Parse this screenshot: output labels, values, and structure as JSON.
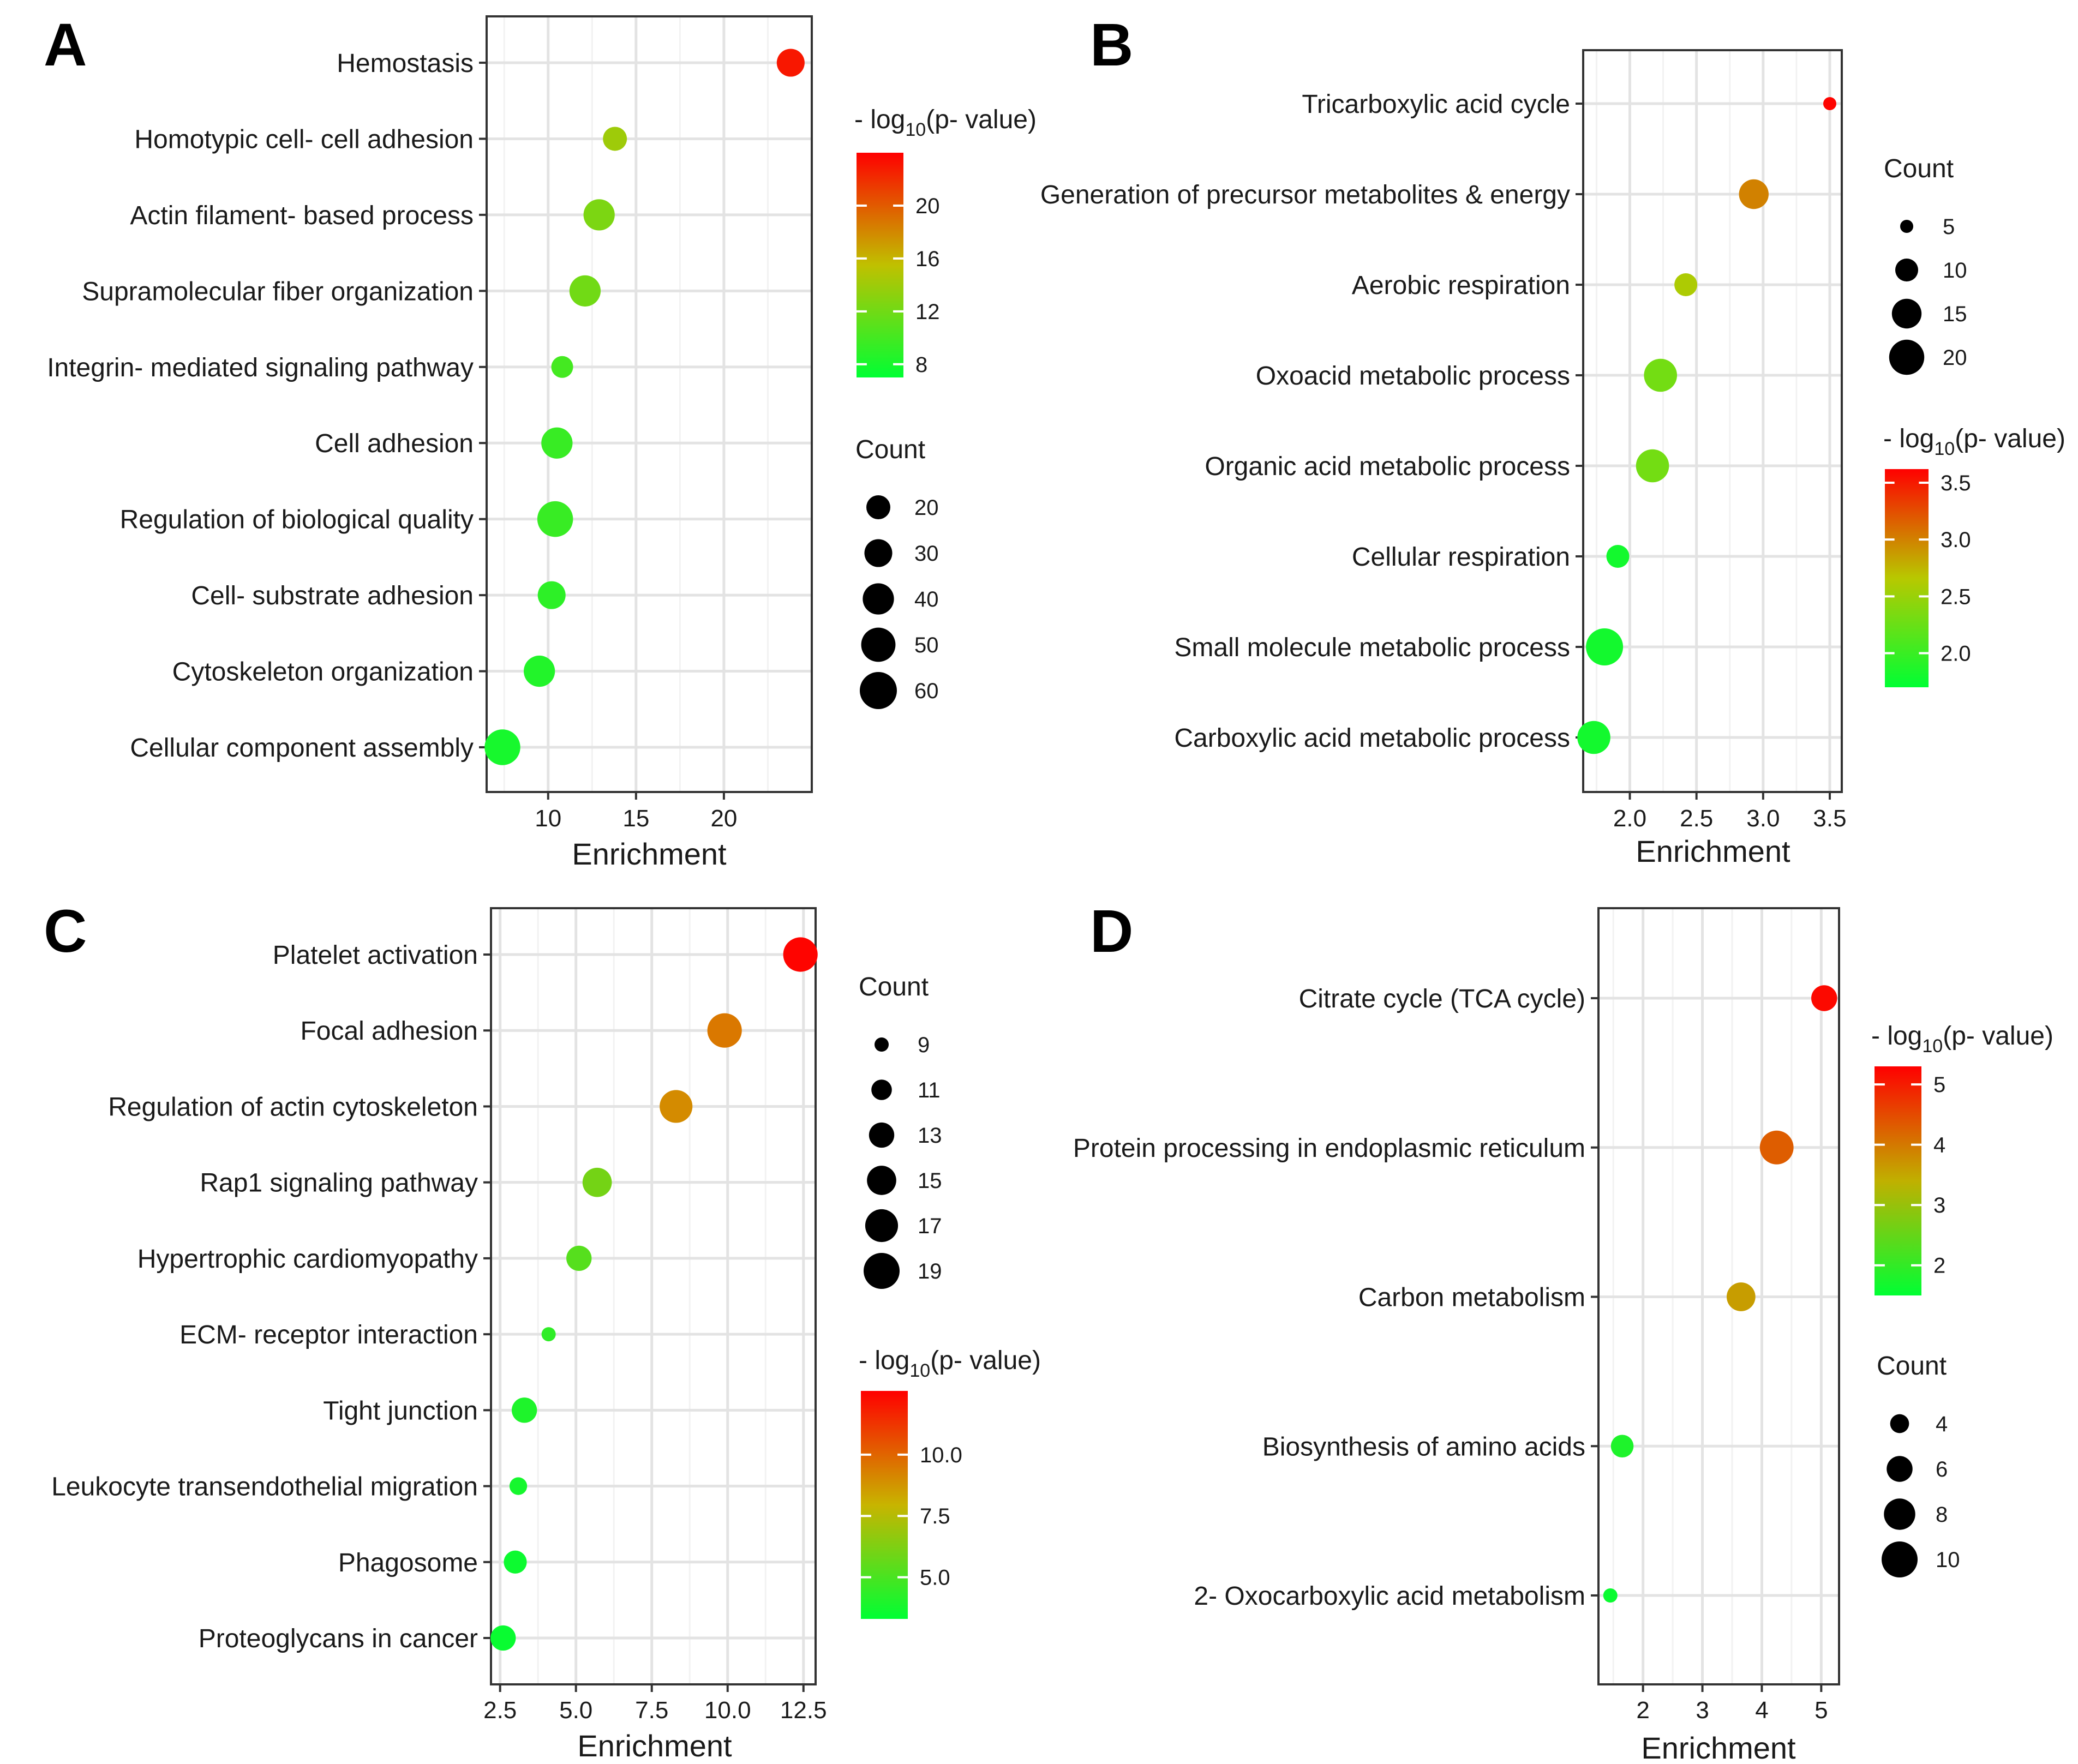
{
  "figure": {
    "panels": [
      {
        "letter": "A",
        "chart_data": {
          "type": "scatter",
          "categories": [
            "Hemostasis",
            "Homotypic cell- cell adhesion",
            "Actin filament- based process",
            "Supramolecular fiber organization",
            "Integrin- mediated signaling pathway",
            "Cell adhesion",
            "Regulation of biological quality",
            "Cell- substrate adhesion",
            "Cytoskeleton organization",
            "Cellular component assembly"
          ],
          "x": [
            23.8,
            13.8,
            12.9,
            12.1,
            10.8,
            10.5,
            10.4,
            10.2,
            9.5,
            7.4
          ],
          "count": [
            30,
            20,
            40,
            40,
            15,
            40,
            55,
            30,
            40,
            55
          ],
          "neglog10p": [
            23,
            14,
            12.5,
            12,
            10,
            9.5,
            9.5,
            9,
            8.5,
            8
          ],
          "xlabel": "Enrichment",
          "xlim": [
            6.5,
            25
          ],
          "xticks": [
            10,
            15,
            20
          ],
          "grid": true,
          "color_legend": {
            "title_prefix": "- log",
            "title_sub": "10",
            "title_suffix": "(p- value)",
            "range": [
              7,
              24
            ],
            "ticks": [
              20,
              16,
              12,
              8
            ],
            "low_color": "#00ff33",
            "mid_color": "#c0c000",
            "high_color": "#ff0000"
          },
          "size_legend": {
            "title": "Count",
            "values": [
              20,
              30,
              40,
              50,
              60
            ],
            "range": [
              15,
              60
            ]
          }
        }
      },
      {
        "letter": "B",
        "chart_data": {
          "type": "scatter",
          "categories": [
            "Tricarboxylic acid cycle",
            "Generation of precursor metabolites & energy",
            "Aerobic respiration",
            "Oxoacid metabolic process",
            "Organic acid metabolic process",
            "Cellular respiration",
            "Small molecule metabolic process",
            "Carboxylic acid metabolic process"
          ],
          "x": [
            3.5,
            2.93,
            2.42,
            2.23,
            2.17,
            1.91,
            1.81,
            1.73
          ],
          "count": [
            5,
            15,
            10,
            18,
            18,
            10,
            22,
            18
          ],
          "neglog10p": [
            3.6,
            3.0,
            2.6,
            2.3,
            2.3,
            1.8,
            1.8,
            1.8
          ],
          "xlabel": "Enrichment",
          "xlim": [
            1.65,
            3.59
          ],
          "xticks": [
            2.0,
            2.5,
            3.0,
            3.5
          ],
          "xtick_labels": [
            "2.0",
            "2.5",
            "3.0",
            "3.5"
          ],
          "grid": true,
          "size_legend": {
            "title": "Count",
            "values": [
              5,
              10,
              15,
              20
            ],
            "range": [
              5,
              22
            ]
          },
          "color_legend": {
            "title_prefix": "- log",
            "title_sub": "10",
            "title_suffix": "(p- value)",
            "range": [
              1.7,
              3.62
            ],
            "ticks": [
              3.5,
              3.0,
              2.5,
              2.0
            ],
            "tick_labels": [
              "3.5",
              "3.0",
              "2.5",
              "2.0"
            ],
            "low_color": "#00ff33",
            "mid_color": "#b8c800",
            "high_color": "#ff0000"
          }
        }
      },
      {
        "letter": "C",
        "chart_data": {
          "type": "scatter",
          "categories": [
            "Platelet activation",
            "Focal adhesion",
            "Regulation of actin cytoskeleton",
            "Rap1 signaling pathway",
            "Hypertrophic cardiomyopathy",
            "ECM- receptor interaction",
            "Tight junction",
            "Leukocyte transendothelial migration",
            "Phagosome",
            "Proteoglycans in cancer"
          ],
          "x": [
            12.4,
            9.9,
            8.3,
            5.7,
            5.1,
            4.1,
            3.3,
            3.1,
            3.0,
            2.6
          ],
          "count": [
            18,
            18,
            17,
            15,
            13,
            9,
            13,
            10,
            12,
            13
          ],
          "neglog10p": [
            12.5,
            9.5,
            9,
            6,
            5.3,
            4.4,
            4.0,
            3.8,
            3.6,
            3.5
          ],
          "xlabel": "Enrichment",
          "xlim": [
            2.2,
            12.9
          ],
          "xticks": [
            2.5,
            5.0,
            7.5,
            10.0,
            12.5
          ],
          "xtick_labels": [
            "2.5",
            "5.0",
            "7.5",
            "10.0",
            "12.5"
          ],
          "grid": true,
          "size_legend": {
            "title": "Count",
            "values": [
              9,
              11,
              13,
              15,
              17,
              19
            ],
            "range": [
              9,
              19
            ]
          },
          "color_legend": {
            "title_prefix": "- log",
            "title_sub": "10",
            "title_suffix": "(p- value)",
            "range": [
              3.3,
              12.6
            ],
            "ticks": [
              10.0,
              7.5,
              5.0
            ],
            "tick_labels": [
              "10.0",
              "7.5",
              "5.0"
            ],
            "low_color": "#00ff33",
            "mid_color": "#c8b400",
            "high_color": "#ff0000"
          }
        }
      },
      {
        "letter": "D",
        "chart_data": {
          "type": "scatter",
          "categories": [
            "Citrate cycle (TCA cycle)",
            "Protein processing in endoplasmic reticulum",
            "Carbon metabolism",
            "Biosynthesis of amino acids",
            "2- Oxocarboxylic acid metabolism"
          ],
          "x": [
            5.05,
            4.25,
            3.65,
            1.65,
            1.45
          ],
          "count": [
            6,
            9,
            7,
            5,
            3
          ],
          "neglog10p": [
            5.2,
            4.3,
            3.6,
            1.8,
            1.6
          ],
          "xlabel": "Enrichment",
          "xlim": [
            1.25,
            5.3
          ],
          "xticks": [
            2,
            3,
            4,
            5
          ],
          "grid": true,
          "color_legend": {
            "title_prefix": "- log",
            "title_sub": "10",
            "title_suffix": "(p- value)",
            "range": [
              1.5,
              5.3
            ],
            "ticks": [
              5,
              4,
              3,
              2
            ],
            "low_color": "#00ff33",
            "mid_color": "#c0b000",
            "high_color": "#ff0000"
          },
          "size_legend": {
            "title": "Count",
            "values": [
              4,
              6,
              8,
              10
            ],
            "range": [
              3,
              10
            ]
          }
        }
      }
    ]
  }
}
